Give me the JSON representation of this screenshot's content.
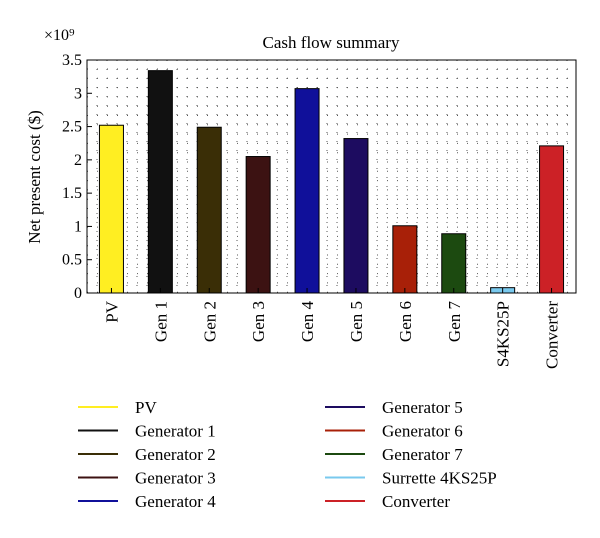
{
  "chart_data": {
    "type": "bar",
    "title": "Cash flow summary",
    "ylabel": "Net present cost ($)",
    "xlabel": "",
    "y_multiplier": "×10⁹",
    "ylim": [
      0,
      3.5
    ],
    "yticks": [
      0,
      0.5,
      1,
      1.5,
      2,
      2.5,
      3,
      3.5
    ],
    "ytick_labels": [
      "0",
      "0.5",
      "1",
      "1.5",
      "2",
      "2.5",
      "3",
      "3.5"
    ],
    "grid": "dotted",
    "categories": [
      "PV",
      "Gen 1",
      "Gen 2",
      "Gen 3",
      "Gen 4",
      "Gen 5",
      "Gen 6",
      "Gen 7",
      "S4KS25P",
      "Converter"
    ],
    "values": [
      2.52,
      3.34,
      2.49,
      2.05,
      3.07,
      2.32,
      1.01,
      0.89,
      0.08,
      2.21
    ],
    "colors": [
      "#ffee22",
      "#111111",
      "#3a2e06",
      "#3c1212",
      "#10109a",
      "#1d0c60",
      "#a82008",
      "#1c4a10",
      "#79c9ee",
      "#cc2126"
    ],
    "legend": {
      "placement": "bottom",
      "entries": [
        {
          "label": "PV",
          "color": "#ffee22"
        },
        {
          "label": "Generator 1",
          "color": "#111111"
        },
        {
          "label": "Generator 2",
          "color": "#3a2e06"
        },
        {
          "label": "Generator 3",
          "color": "#3c1212"
        },
        {
          "label": "Generator 4",
          "color": "#10109a"
        },
        {
          "label": "Generator 5",
          "color": "#1d0c60"
        },
        {
          "label": "Generator 6",
          "color": "#a82008"
        },
        {
          "label": "Generator 7",
          "color": "#1c4a10"
        },
        {
          "label": "Surrette 4KS25P",
          "color": "#79c9ee"
        },
        {
          "label": "Converter",
          "color": "#cc2126"
        }
      ]
    }
  }
}
